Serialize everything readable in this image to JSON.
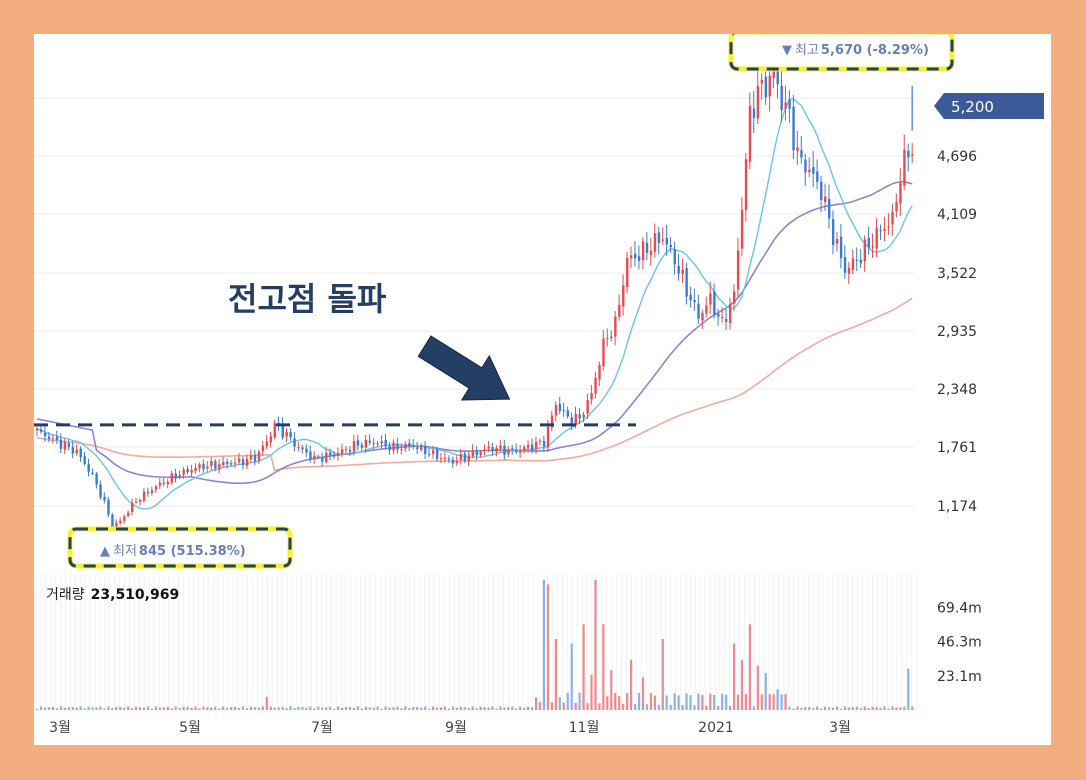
{
  "chart_data": {
    "type": "candlestick",
    "title": "",
    "x_tick_labels": [
      "3월",
      "5월",
      "7월",
      "9월",
      "11월",
      "2021",
      "3월"
    ],
    "y_tick_labels": [
      "1,174",
      "1,761",
      "2,348",
      "2,935",
      "3,522",
      "4,109",
      "4,696"
    ],
    "ylim": [
      850,
      5700
    ],
    "grid": true,
    "current_price": "5,200",
    "high_label": {
      "arrow": "▼",
      "prefix": "최고",
      "value": "5,670 (-8.29%)"
    },
    "low_label": {
      "arrow": "▲",
      "prefix": "최저",
      "value": "845 (515.38%)"
    },
    "annotation": "전고점 돌파",
    "resistance_level": 1990,
    "volume_title": "거래량",
    "volume_value": "23,510,969",
    "volume_tick_labels": [
      "69.4m",
      "46.3m",
      "23.1m"
    ],
    "volume_ylim": [
      0,
      92
    ],
    "colors": {
      "up": "#e84b4b",
      "down": "#3a7bd5",
      "ma5": "#6cc4e6",
      "ma20": "#8f83d8",
      "ma60": "#f5aaa0",
      "ma_long": "#7bb0e0",
      "annotation": "#243f63",
      "highlight_border": "#f3f332",
      "price_tag": "#3d5a98"
    },
    "anchors": [
      {
        "i": 0,
        "p": 1930
      },
      {
        "i": 5,
        "p": 1820
      },
      {
        "i": 10,
        "p": 1720
      },
      {
        "i": 14,
        "p": 1480
      },
      {
        "i": 17,
        "p": 1200
      },
      {
        "i": 19,
        "p": 980
      },
      {
        "i": 21,
        "p": 1020
      },
      {
        "i": 25,
        "p": 1230
      },
      {
        "i": 30,
        "p": 1370
      },
      {
        "i": 35,
        "p": 1480
      },
      {
        "i": 40,
        "p": 1560
      },
      {
        "i": 45,
        "p": 1590
      },
      {
        "i": 50,
        "p": 1610
      },
      {
        "i": 55,
        "p": 1660
      },
      {
        "i": 58,
        "p": 1820
      },
      {
        "i": 60,
        "p": 1990
      },
      {
        "i": 63,
        "p": 1890
      },
      {
        "i": 66,
        "p": 1760
      },
      {
        "i": 70,
        "p": 1650
      },
      {
        "i": 75,
        "p": 1690
      },
      {
        "i": 80,
        "p": 1780
      },
      {
        "i": 85,
        "p": 1820
      },
      {
        "i": 90,
        "p": 1760
      },
      {
        "i": 95,
        "p": 1780
      },
      {
        "i": 100,
        "p": 1690
      },
      {
        "i": 105,
        "p": 1620
      },
      {
        "i": 110,
        "p": 1700
      },
      {
        "i": 115,
        "p": 1760
      },
      {
        "i": 120,
        "p": 1720
      },
      {
        "i": 125,
        "p": 1780
      },
      {
        "i": 128,
        "p": 1820
      },
      {
        "i": 131,
        "p": 2200
      },
      {
        "i": 134,
        "p": 2060
      },
      {
        "i": 137,
        "p": 2050
      },
      {
        "i": 140,
        "p": 2300
      },
      {
        "i": 143,
        "p": 2800
      },
      {
        "i": 146,
        "p": 3000
      },
      {
        "i": 149,
        "p": 3650
      },
      {
        "i": 152,
        "p": 3700
      },
      {
        "i": 155,
        "p": 3800
      },
      {
        "i": 158,
        "p": 3880
      },
      {
        "i": 161,
        "p": 3650
      },
      {
        "i": 164,
        "p": 3350
      },
      {
        "i": 167,
        "p": 3080
      },
      {
        "i": 170,
        "p": 3250
      },
      {
        "i": 173,
        "p": 3000
      },
      {
        "i": 176,
        "p": 3300
      },
      {
        "i": 178,
        "p": 4200
      },
      {
        "i": 180,
        "p": 5100
      },
      {
        "i": 182,
        "p": 5350
      },
      {
        "i": 184,
        "p": 5400
      },
      {
        "i": 186,
        "p": 5550
      },
      {
        "i": 188,
        "p": 5250
      },
      {
        "i": 190,
        "p": 5100
      },
      {
        "i": 192,
        "p": 4700
      },
      {
        "i": 195,
        "p": 4550
      },
      {
        "i": 198,
        "p": 4350
      },
      {
        "i": 201,
        "p": 3900
      },
      {
        "i": 204,
        "p": 3550
      },
      {
        "i": 207,
        "p": 3650
      },
      {
        "i": 210,
        "p": 3800
      },
      {
        "i": 213,
        "p": 3950
      },
      {
        "i": 216,
        "p": 4050
      },
      {
        "i": 218,
        "p": 4500
      },
      {
        "i": 220,
        "p": 4750
      }
    ],
    "volume_spikes": [
      {
        "i": 58,
        "v": 9
      },
      {
        "i": 128,
        "v": 88
      },
      {
        "i": 129,
        "v": 85
      },
      {
        "i": 131,
        "v": 48
      },
      {
        "i": 135,
        "v": 45
      },
      {
        "i": 138,
        "v": 58
      },
      {
        "i": 140,
        "v": 24
      },
      {
        "i": 141,
        "v": 88
      },
      {
        "i": 143,
        "v": 58
      },
      {
        "i": 145,
        "v": 27
      },
      {
        "i": 150,
        "v": 34
      },
      {
        "i": 153,
        "v": 22
      },
      {
        "i": 158,
        "v": 48
      },
      {
        "i": 176,
        "v": 45
      },
      {
        "i": 178,
        "v": 34
      },
      {
        "i": 180,
        "v": 58
      },
      {
        "i": 182,
        "v": 30
      },
      {
        "i": 184,
        "v": 25
      },
      {
        "i": 187,
        "v": 14
      },
      {
        "i": 220,
        "v": 28
      }
    ]
  }
}
